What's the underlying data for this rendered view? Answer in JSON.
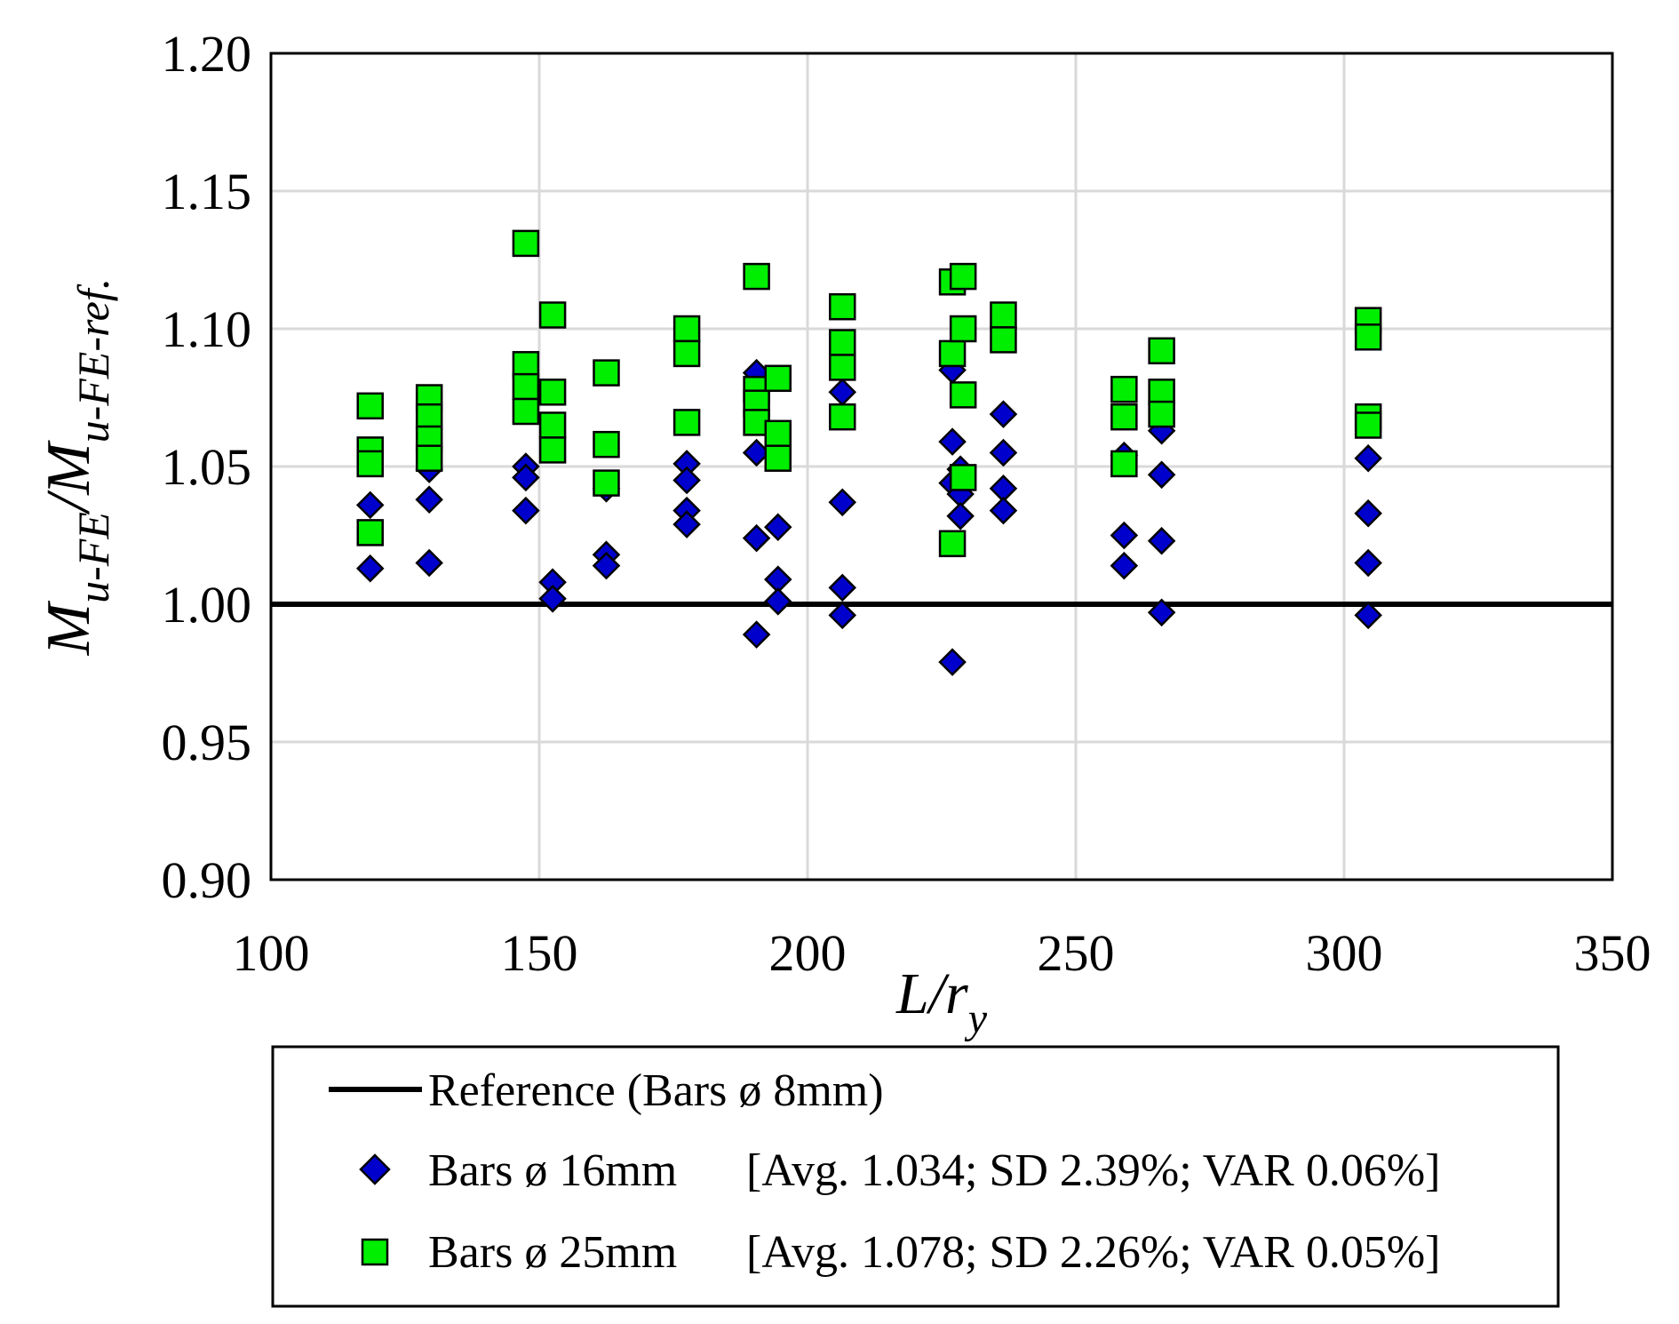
{
  "chart_data": {
    "type": "scatter",
    "title": "",
    "xlabel": {
      "main": "L/r",
      "sub": "y"
    },
    "ylabel": {
      "m1": "M",
      "s1": "u-FE",
      "slash": "/",
      "m2": "M",
      "s2": "u-FE-ref."
    },
    "xlim": [
      100,
      350
    ],
    "ylim": [
      0.9,
      1.2
    ],
    "x_ticks": [
      "100",
      "150",
      "200",
      "250",
      "300",
      "350"
    ],
    "y_ticks": [
      "0.90",
      "0.95",
      "1.00",
      "1.05",
      "1.10",
      "1.15",
      "1.20"
    ],
    "grid": true,
    "reference_line": {
      "y": 1.0,
      "name": "Reference (Bars ø 8mm)"
    },
    "series": [
      {
        "name": "Bars ø 16mm",
        "stats": "[Avg. 1.034; SD 2.39%; VAR 0.06%]",
        "marker": "diamond",
        "color": "#0000cc",
        "points": [
          [
            118.5,
            1.036
          ],
          [
            118.5,
            1.013
          ],
          [
            129.5,
            1.049
          ],
          [
            129.5,
            1.038
          ],
          [
            129.5,
            1.015
          ],
          [
            147.5,
            1.05
          ],
          [
            147.5,
            1.046
          ],
          [
            147.5,
            1.034
          ],
          [
            152.5,
            1.008
          ],
          [
            152.5,
            1.002
          ],
          [
            162.5,
            1.042
          ],
          [
            162.5,
            1.018
          ],
          [
            162.5,
            1.014
          ],
          [
            177.5,
            1.051
          ],
          [
            177.5,
            1.045
          ],
          [
            177.5,
            1.034
          ],
          [
            177.5,
            1.029
          ],
          [
            190.5,
            1.084
          ],
          [
            190.5,
            1.055
          ],
          [
            190.5,
            1.024
          ],
          [
            190.5,
            0.989
          ],
          [
            194.5,
            1.028
          ],
          [
            194.5,
            1.009
          ],
          [
            194.5,
            1.001
          ],
          [
            206.5,
            1.077
          ],
          [
            206.5,
            1.037
          ],
          [
            206.5,
            1.006
          ],
          [
            206.5,
            0.996
          ],
          [
            227.0,
            1.085
          ],
          [
            227.0,
            1.059
          ],
          [
            227.0,
            1.044
          ],
          [
            227.0,
            0.979
          ],
          [
            228.5,
            1.049
          ],
          [
            228.5,
            1.04
          ],
          [
            228.5,
            1.032
          ],
          [
            236.5,
            1.069
          ],
          [
            236.5,
            1.055
          ],
          [
            236.5,
            1.042
          ],
          [
            236.5,
            1.034
          ],
          [
            259.0,
            1.054
          ],
          [
            259.0,
            1.025
          ],
          [
            259.0,
            1.014
          ],
          [
            266.0,
            1.063
          ],
          [
            266.0,
            1.047
          ],
          [
            266.0,
            1.023
          ],
          [
            266.0,
            0.997
          ],
          [
            304.5,
            1.053
          ],
          [
            304.5,
            1.033
          ],
          [
            304.5,
            1.015
          ],
          [
            304.5,
            0.996
          ]
        ]
      },
      {
        "name": "Bars ø 25mm",
        "stats": "[Avg. 1.078; SD 2.26%; VAR 0.05%]",
        "marker": "square",
        "color": "#00ee00",
        "points": [
          [
            118.5,
            1.072
          ],
          [
            118.5,
            1.056
          ],
          [
            118.5,
            1.051
          ],
          [
            118.5,
            1.026
          ],
          [
            129.5,
            1.075
          ],
          [
            129.5,
            1.068
          ],
          [
            129.5,
            1.06
          ],
          [
            129.5,
            1.053
          ],
          [
            147.5,
            1.131
          ],
          [
            147.5,
            1.087
          ],
          [
            147.5,
            1.079
          ],
          [
            147.5,
            1.07
          ],
          [
            152.5,
            1.105
          ],
          [
            152.5,
            1.077
          ],
          [
            152.5,
            1.065
          ],
          [
            152.5,
            1.056
          ],
          [
            162.5,
            1.084
          ],
          [
            162.5,
            1.058
          ],
          [
            162.5,
            1.044
          ],
          [
            177.5,
            1.1
          ],
          [
            177.5,
            1.091
          ],
          [
            177.5,
            1.066
          ],
          [
            190.5,
            1.119
          ],
          [
            190.5,
            1.078
          ],
          [
            190.5,
            1.073
          ],
          [
            190.5,
            1.066
          ],
          [
            194.5,
            1.082
          ],
          [
            194.5,
            1.062
          ],
          [
            194.5,
            1.053
          ],
          [
            206.5,
            1.108
          ],
          [
            206.5,
            1.095
          ],
          [
            206.5,
            1.086
          ],
          [
            206.5,
            1.068
          ],
          [
            227.0,
            1.117
          ],
          [
            227.0,
            1.091
          ],
          [
            227.0,
            1.022
          ],
          [
            229.0,
            1.119
          ],
          [
            229.0,
            1.1
          ],
          [
            229.0,
            1.076
          ],
          [
            229.0,
            1.046
          ],
          [
            236.5,
            1.105
          ],
          [
            236.5,
            1.096
          ],
          [
            259.0,
            1.078
          ],
          [
            259.0,
            1.068
          ],
          [
            259.0,
            1.051
          ],
          [
            266.0,
            1.092
          ],
          [
            266.0,
            1.077
          ],
          [
            266.0,
            1.069
          ],
          [
            304.5,
            1.103
          ],
          [
            304.5,
            1.097
          ],
          [
            304.5,
            1.068
          ],
          [
            304.5,
            1.065
          ]
        ]
      }
    ]
  }
}
